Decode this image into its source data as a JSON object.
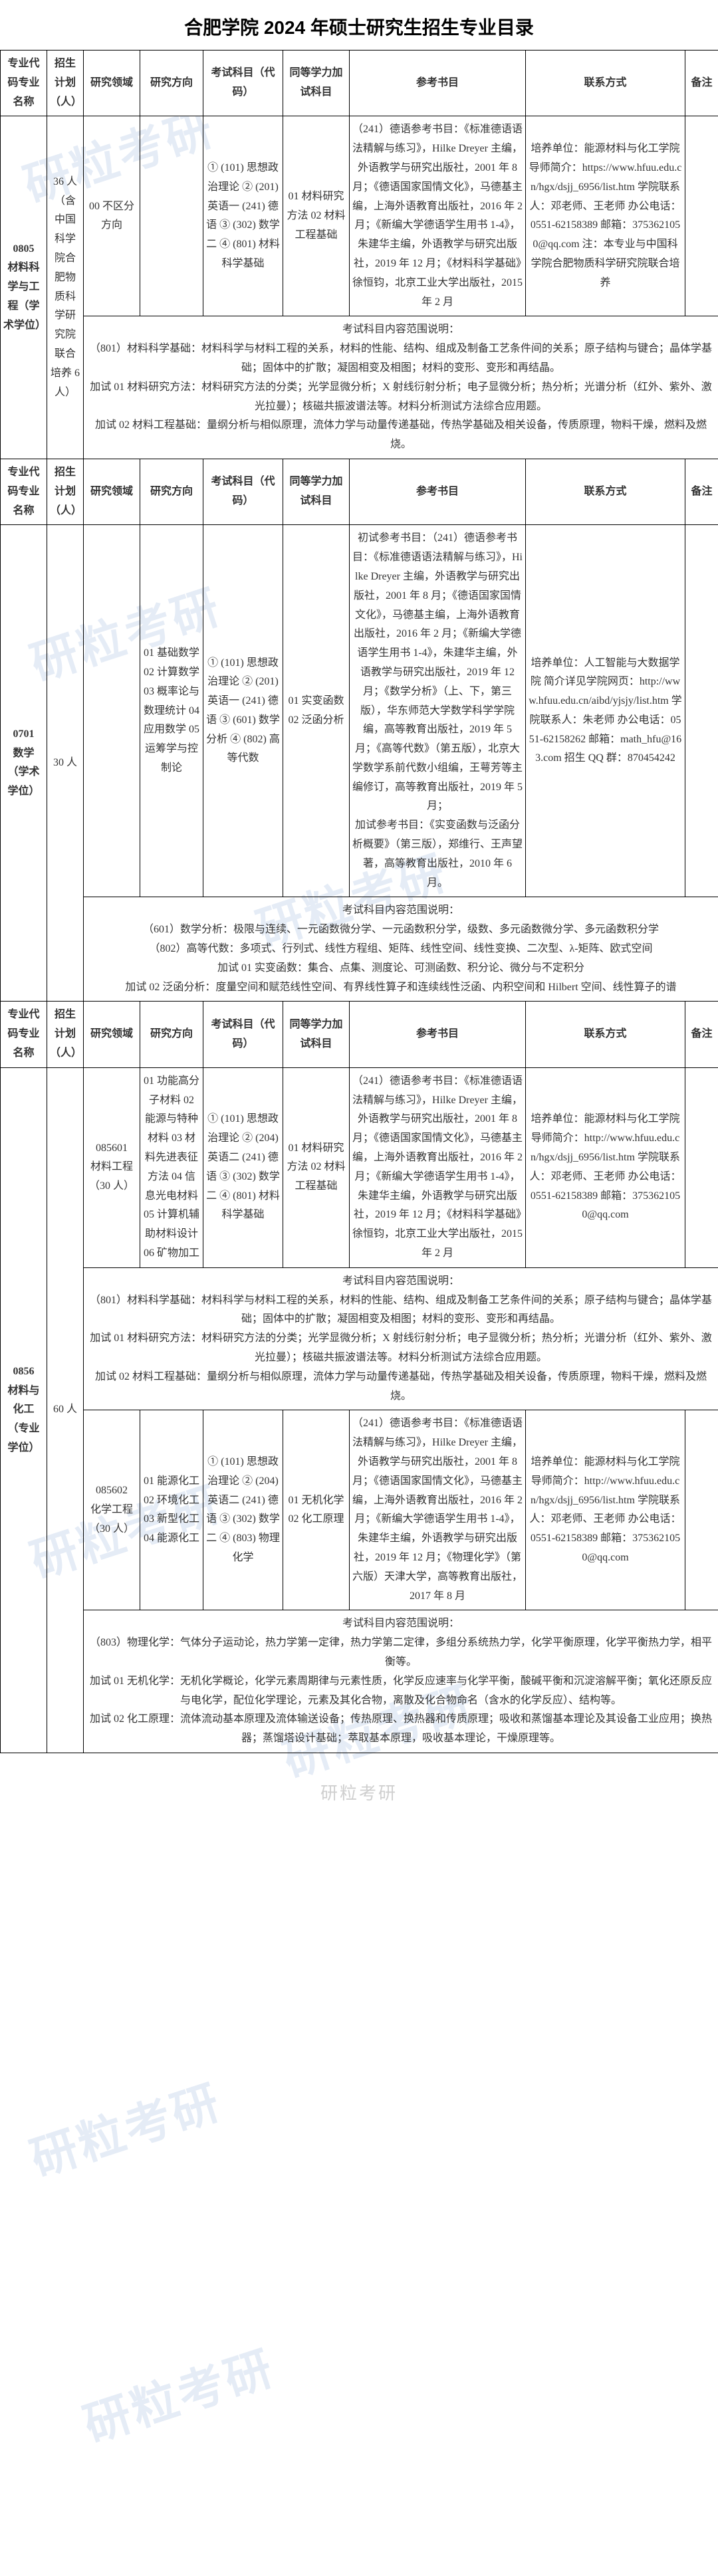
{
  "page_title": "合肥学院 2024 年硕士研究生招生专业目录",
  "watermark_text": "研粒考研",
  "footer_watermark": "研粒考研",
  "headers": {
    "code": "专业代码专业名称",
    "plan": "招生计划（人）",
    "field": "研究领域",
    "direction": "研究方向",
    "subjects": "考试科目（代码）",
    "equivalent": "同等学力加试科目",
    "books": "参考书目",
    "contact": "联系方式",
    "note": "备注"
  },
  "sections": [
    {
      "code": "0805",
      "name": "材料科学与工程（学术学位）",
      "plan": "36 人",
      "plan_note": "（含中国科学院合肥物质科学研究院联合培养 6 人）",
      "field": "00 不区分方向",
      "direction": "",
      "subjects": "① (101) 思想政治理论 ② (201) 英语一 (241) 德语 ③ (302) 数学二 ④ (801) 材料科学基础",
      "equivalent": "01 材料研究方法 02 材料工程基础",
      "books": "（241）德语参考书目：《标准德语语法精解与练习》，Hilke Dreyer 主编，外语教学与研究出版社，2001 年 8 月；《德语国家国情文化》，马德基主编，上海外语教育出版社，2016 年 2 月；《新编大学德语学生用书 1-4》，朱建华主编，外语教学与研究出版社，2019 年 12 月；《材料科学基础》徐恒钧，北京工业大学出版社，2015 年 2 月",
      "contact": "培养单位：能源材料与化工学院 导师简介：https://www.hfuu.edu.cn/hgx/dsjj_6956/list.htm 学院联系人：邓老师、王老师 办公电话：0551-62158389 邮箱：3753621050@qq.com 注：本专业与中国科学院合肥物质科学研究院联合培养",
      "note": "",
      "desc": "考试科目内容范围说明：\n（801）材料科学基础：材料科学与材料工程的关系，材料的性能、结构、组成及制备工艺条件间的关系；原子结构与键合；晶体学基础；固体中的扩散；凝固相变及相图；材料的变形、变形和再结晶。\n加试 01 材料研究方法：材料研究方法的分类；光学显微分析；X 射线衍射分析；电子显微分析；热分析；光谱分析（红外、紫外、激光拉曼）；核磁共振波谱法等。材料分析测试方法综合应用题。\n加试 02 材料工程基础：量纲分析与相似原理，流体力学与动量传递基础，传热学基础及相关设备，传质原理，物料干燥，燃料及燃烧。"
    },
    {
      "code": "0701",
      "name": "数学（学术学位）",
      "plan": "30 人",
      "field": "",
      "direction": "01 基础数学 02 计算数学 03 概率论与数理统计 04 应用数学 05 运筹学与控制论",
      "subjects": "① (101) 思想政治理论 ② (201) 英语一 (241) 德语 ③ (601) 数学分析 ④ (802) 高等代数",
      "equivalent": "01 实变函数 02 泛函分析",
      "books": "初试参考书目：（241）德语参考书目：《标准德语语法精解与练习》，Hilke Dreyer 主编，外语教学与研究出版社，2001 年 8 月；《德语国家国情文化》，马德基主编，上海外语教育出版社，2016 年 2 月；《新编大学德语学生用书 1-4》，朱建华主编，外语教学与研究出版社，2019 年 12 月；《数学分析》（上、下，第三版），华东师范大学数学科学学院编，高等教育出版社，2019 年 5 月；《高等代数》（第五版），北京大学数学系前代数小组编，王萼芳等主编修订，高等教育出版社，2019 年 5 月；\n加试参考书目：《实变函数与泛函分析概要》（第三版），郑维行、王声望著，高等教育出版社，2010 年 6 月。",
      "contact": "培养单位：人工智能与大数据学院 简介详见学院网页：http://www.hfuu.edu.cn/aibd/yjsjy/list.htm 学院联系人：朱老师 办公电话：0551-62158262 邮箱：math_hfu@163.com 招生 QQ 群：870454242",
      "note": "",
      "desc": "考试科目内容范围说明：\n（601）数学分析：极限与连续、一元函数微分学、一元函数积分学，级数、多元函数微分学、多元函数积分学\n（802）高等代数：多项式、行列式、线性方程组、矩阵、线性空间、线性变换、二次型、λ-矩阵、欧式空间\n加试 01 实变函数：集合、点集、测度论、可测函数、积分论、微分与不定积分\n加试 02 泛函分析：度量空间和赋范线性空间、有界线性算子和连续线性泛函、内积空间和 Hilbert 空间、线性算子的谱"
    },
    {
      "code": "0856",
      "name": "材料与化工（专业学位）",
      "plan": "60 人",
      "subsections": [
        {
          "field_code": "085601",
          "field_name": "材料工程（30 人）",
          "direction": "01 功能高分子材料 02 能源与特种材料 03 材料先进表征方法 04 信息光电材料 05 计算机辅助材料设计 06 矿物加工",
          "subjects": "① (101) 思想政治理论 ② (204) 英语二 (241) 德语 ③ (302) 数学二 ④ (801) 材料科学基础",
          "equivalent": "01 材料研究方法 02 材料工程基础",
          "books": "（241）德语参考书目：《标准德语语法精解与练习》，Hilke Dreyer 主编，外语教学与研究出版社，2001 年 8 月；《德语国家国情文化》，马德基主编，上海外语教育出版社，2016 年 2 月；《新编大学德语学生用书 1-4》，朱建华主编，外语教学与研究出版社，2019 年 12 月；《材料科学基础》徐恒钧，北京工业大学出版社，2015 年 2 月",
          "contact": "培养单位：能源材料与化工学院 导师简介：http://www.hfuu.edu.cn/hgx/dsjj_6956/list.htm 学院联系人：邓老师、王老师 办公电话：0551-62158389 邮箱：3753621050@qq.com",
          "note": "",
          "desc": "考试科目内容范围说明：\n（801）材料科学基础：材料科学与材料工程的关系，材料的性能、结构、组成及制备工艺条件间的关系；原子结构与键合；晶体学基础；固体中的扩散；凝固相变及相图；材料的变形、变形和再结晶。\n加试 01 材料研究方法：材料研究方法的分类；光学显微分析；X 射线衍射分析；电子显微分析；热分析；光谱分析（红外、紫外、激光拉曼）；核磁共振波谱法等。材料分析测试方法综合应用题。\n加试 02 材料工程基础：量纲分析与相似原理，流体力学与动量传递基础，传热学基础及相关设备，传质原理，物料干燥，燃料及燃烧。"
        },
        {
          "field_code": "085602",
          "field_name": "化学工程（30 人）",
          "direction": "01 能源化工 02 环境化工 03 新型化工 04 能源化工",
          "subjects": "① (101) 思想政治理论 ② (204) 英语二 (241) 德语 ③ (302) 数学二 ④ (803) 物理化学",
          "equivalent": "01 无机化学 02 化工原理",
          "books": "（241）德语参考书目：《标准德语语法精解与练习》，Hilke Dreyer 主编，外语教学与研究出版社，2001 年 8 月；《德语国家国情文化》，马德基主编，上海外语教育出版社，2016 年 2 月；《新编大学德语学生用书 1-4》，朱建华主编，外语教学与研究出版社，2019 年 12 月；《物理化学》（第六版）天津大学，高等教育出版社，2017 年 8 月",
          "contact": "培养单位：能源材料与化工学院 导师简介：http://www.hfuu.edu.cn/hgx/dsjj_6956/list.htm 学院联系人：邓老师、王老师 办公电话：0551-62158389 邮箱：3753621050@qq.com",
          "note": "",
          "desc": "考试科目内容范围说明：\n（803）物理化学：气体分子运动论，热力学第一定律，热力学第二定律，多组分系统热力学，化学平衡原理，化学平衡热力学，相平衡等。\n加试 01 无机化学：无机化学概论，化学元素周期律与元素性质，化学反应速率与化学平衡，酸碱平衡和沉淀溶解平衡；氧化还原反应与电化学，配位化学理论，元素及其化合物，离散及化合物命名（含水的化学反应）、结构等。\n加试 02 化工原理：流体流动基本原理及流体输送设备；传热原理、换热器和传质原理；吸收和蒸馏基本理论及其设备工业应用；换热器；蒸馏塔设计基础；萃取基本原理，吸收基本理论，干燥原理等。"
        }
      ]
    }
  ]
}
